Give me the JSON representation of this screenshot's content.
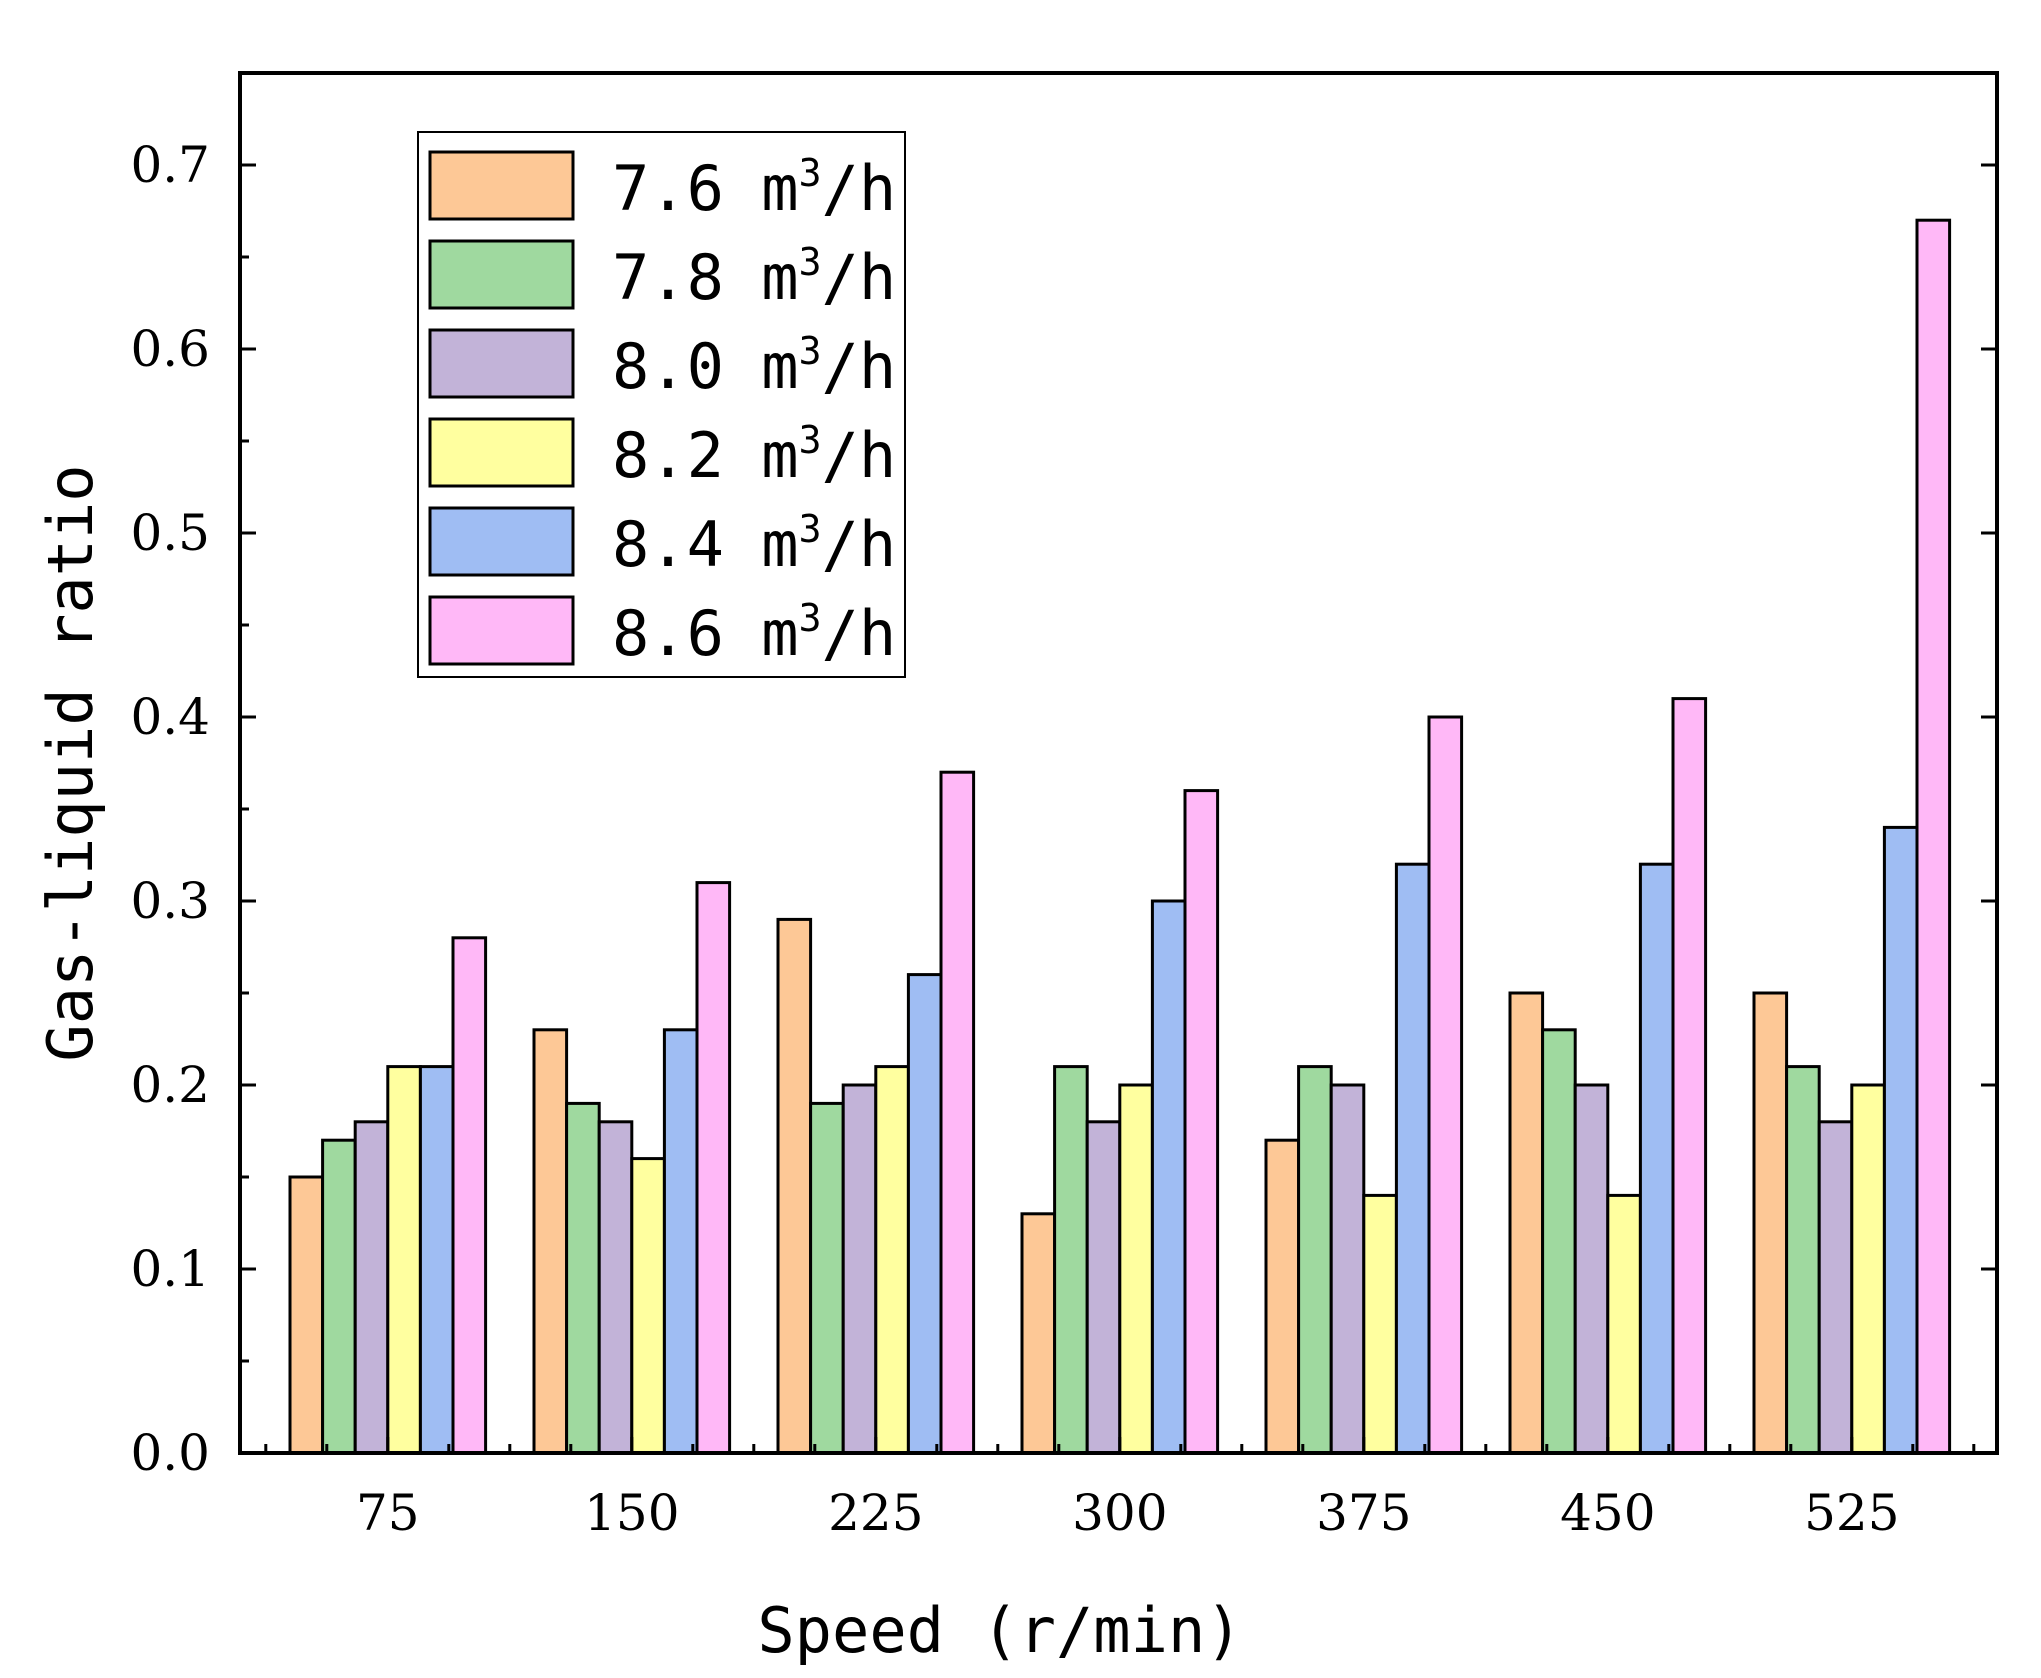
{
  "chart_data": {
    "type": "bar",
    "title": "",
    "xlabel": "Speed (r/min)",
    "ylabel": "Gas-liquid ratio",
    "ylim": [
      0,
      0.75
    ],
    "yticks": [
      "0.0",
      "0.1",
      "0.2",
      "0.3",
      "0.4",
      "0.5",
      "0.6",
      "0.7"
    ],
    "categories": [
      "75",
      "150",
      "225",
      "300",
      "375",
      "450",
      "525"
    ],
    "legend_position": "top-left",
    "grid": false,
    "series": [
      {
        "name": "7.6 m3/h",
        "label_value": "7.6",
        "unit_base": "m",
        "unit_sup": "3",
        "unit_tail": "/h",
        "color": "#FDC896",
        "values": [
          0.15,
          0.23,
          0.29,
          0.13,
          0.17,
          0.25,
          0.25
        ]
      },
      {
        "name": "7.8 m3/h",
        "label_value": "7.8",
        "unit_base": "m",
        "unit_sup": "3",
        "unit_tail": "/h",
        "color": "#9FD99F",
        "values": [
          0.17,
          0.19,
          0.19,
          0.21,
          0.21,
          0.23,
          0.21
        ]
      },
      {
        "name": "8.0 m3/h",
        "label_value": "8.0",
        "unit_base": "m",
        "unit_sup": "3",
        "unit_tail": "/h",
        "color": "#C2B3D8",
        "values": [
          0.18,
          0.18,
          0.2,
          0.18,
          0.2,
          0.2,
          0.18
        ]
      },
      {
        "name": "8.2 m3/h",
        "label_value": "8.2",
        "unit_base": "m",
        "unit_sup": "3",
        "unit_tail": "/h",
        "color": "#FFFF9F",
        "values": [
          0.21,
          0.16,
          0.21,
          0.2,
          0.14,
          0.14,
          0.2
        ]
      },
      {
        "name": "8.4 m3/h",
        "label_value": "8.4",
        "unit_base": "m",
        "unit_sup": "3",
        "unit_tail": "/h",
        "color": "#9FBDF3",
        "values": [
          0.21,
          0.23,
          0.26,
          0.3,
          0.32,
          0.32,
          0.34
        ]
      },
      {
        "name": "8.6 m3/h",
        "label_value": "8.6",
        "unit_base": "m",
        "unit_sup": "3",
        "unit_tail": "/h",
        "color": "#FFB8F7",
        "values": [
          0.28,
          0.31,
          0.37,
          0.36,
          0.4,
          0.41,
          0.67
        ]
      }
    ]
  }
}
